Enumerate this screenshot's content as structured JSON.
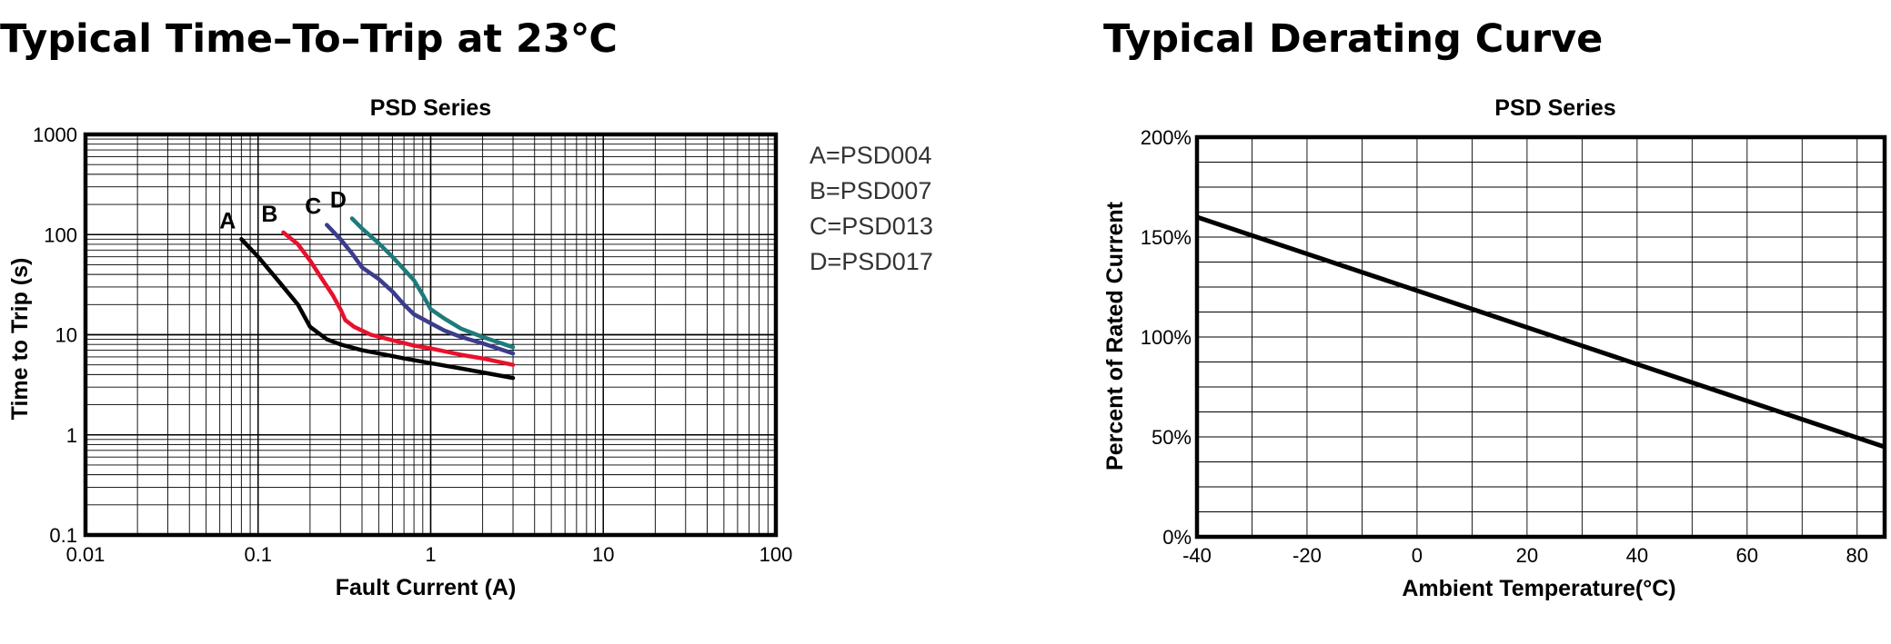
{
  "headings": {
    "left": "Typical Time–To–Trip at 23℃",
    "right": "Typical Derating Curve"
  },
  "chart_data": [
    {
      "type": "line",
      "title": "PSD Series",
      "xlabel": "Fault Current (A)",
      "ylabel": "Time to Trip (s)",
      "xscale": "log",
      "yscale": "log",
      "xlim": [
        0.01,
        100
      ],
      "ylim": [
        0.1,
        1000
      ],
      "xticks": [
        "0.01",
        "0.1",
        "1",
        "10",
        "100"
      ],
      "yticks": [
        "0.1",
        "1",
        "10",
        "100",
        "1000"
      ],
      "grid": true,
      "legend_position": "right",
      "legend": [
        "A=PSD004",
        "B=PSD007",
        "C=PSD013",
        "D=PSD017"
      ],
      "series": [
        {
          "name": "A",
          "color": "#000000",
          "x": [
            0.08,
            0.1,
            0.13,
            0.17,
            0.2,
            0.25,
            0.3,
            0.4,
            0.5,
            0.7,
            1,
            1.5,
            2,
            3
          ],
          "y": [
            90,
            60,
            35,
            20,
            12,
            9,
            8,
            7,
            6.5,
            5.8,
            5.2,
            4.6,
            4.2,
            3.7
          ]
        },
        {
          "name": "B",
          "color": "#e8112d",
          "x": [
            0.14,
            0.17,
            0.2,
            0.23,
            0.27,
            0.3,
            0.32,
            0.36,
            0.45,
            0.6,
            0.8,
            1,
            1.5,
            2,
            3
          ],
          "y": [
            105,
            80,
            55,
            38,
            25,
            18,
            14,
            12,
            10,
            8.8,
            7.8,
            7.3,
            6.3,
            5.8,
            5
          ]
        },
        {
          "name": "C",
          "color": "#3c3c8c",
          "x": [
            0.25,
            0.3,
            0.35,
            0.4,
            0.5,
            0.6,
            0.7,
            0.8,
            1,
            1.2,
            1.5,
            2,
            3
          ],
          "y": [
            125,
            90,
            65,
            47,
            36,
            27,
            20,
            16,
            13,
            11,
            9.5,
            8.2,
            6.5
          ]
        },
        {
          "name": "D",
          "color": "#1f7a7a",
          "x": [
            0.35,
            0.4,
            0.5,
            0.6,
            0.7,
            0.8,
            0.9,
            1,
            1.2,
            1.5,
            2,
            3
          ],
          "y": [
            145,
            115,
            82,
            60,
            45,
            35,
            25,
            18,
            14.5,
            11.5,
            9.5,
            7.5
          ]
        }
      ]
    },
    {
      "type": "line",
      "title": "PSD Series",
      "xlabel": "Ambient Temperature(°C)",
      "ylabel": "Percent of Rated Current",
      "xlim": [
        -40,
        85
      ],
      "ylim": [
        0,
        200
      ],
      "xticks": [
        "-40",
        "-20",
        "0",
        "20",
        "40",
        "60",
        "80"
      ],
      "yticks": [
        "0%",
        "50%",
        "100%",
        "150%",
        "200%"
      ],
      "grid": true,
      "series": [
        {
          "color": "#000000",
          "x": [
            -40,
            85
          ],
          "y": [
            160,
            45
          ]
        }
      ]
    }
  ]
}
